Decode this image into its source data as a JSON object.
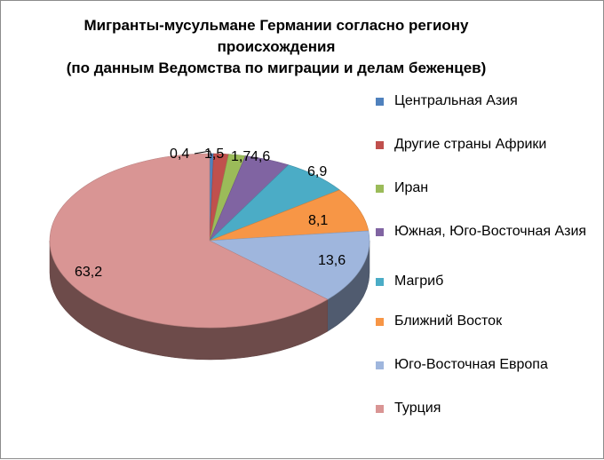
{
  "chart_data": {
    "type": "pie",
    "title_lines": [
      "Мигранты-мусульмане Германии согласно региону",
      "происхождения",
      "(по данным Ведомства по миграции и делам беженцев)"
    ],
    "series": [
      {
        "name": "Центральная Азия",
        "value": 0.4,
        "label": "0,4",
        "color": "#4f81bd"
      },
      {
        "name": "Другие страны Африки",
        "value": 1.5,
        "label": "1,5",
        "color": "#c0504d"
      },
      {
        "name": "Иран",
        "value": 1.7,
        "label": "1,7",
        "color": "#9bbb59"
      },
      {
        "name": "Южная, Юго-Восточная Азия",
        "value": 4.6,
        "label": "4,6",
        "color": "#8064a2"
      },
      {
        "name": "Магриб",
        "value": 6.9,
        "label": "6,9",
        "color": "#4bacc6"
      },
      {
        "name": "Ближний Восток",
        "value": 8.1,
        "label": "8,1",
        "color": "#f79646"
      },
      {
        "name": "Юго-Восточная Европа",
        "value": 13.6,
        "label": "13,6",
        "color": "#9fb6dd"
      },
      {
        "name": "Турция",
        "value": 63.2,
        "label": "63,2",
        "color": "#d99594"
      }
    ],
    "legend_position": "right"
  }
}
